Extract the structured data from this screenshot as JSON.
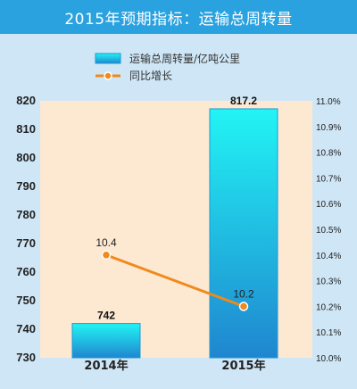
{
  "title": "2015年预期指标：运输总周转量",
  "colors": {
    "title_bg": "#2aa2e0",
    "page_bg": "#cfe6f6",
    "plot_bg": "#fde8d2",
    "bar_top": "#22f4f4",
    "bar_bottom": "#1f86cf",
    "line": "#f08a1c"
  },
  "chart_data": {
    "type": "bar",
    "categories": [
      "2014年",
      "2015年"
    ],
    "series": [
      {
        "name": "运输总周转量/亿吨公里",
        "type": "bar",
        "axis": "left",
        "values": [
          742,
          817.2
        ],
        "labels": [
          "742",
          "817.2"
        ]
      },
      {
        "name": "同比增长",
        "type": "line",
        "axis": "right",
        "values": [
          10.4,
          10.2
        ],
        "labels": [
          "10.4",
          "10.2"
        ]
      }
    ],
    "y_left": {
      "min": 730,
      "max": 820,
      "ticks": [
        "730",
        "740",
        "750",
        "760",
        "770",
        "780",
        "790",
        "800",
        "810",
        "820"
      ]
    },
    "y_right": {
      "min": 10.0,
      "max": 11.0,
      "ticks": [
        "10.0%",
        "10.1%",
        "10.2%",
        "10.3%",
        "10.4%",
        "10.5%",
        "10.6%",
        "10.7%",
        "10.8%",
        "10.9%",
        "11.0%"
      ]
    },
    "legend_position": "top-center",
    "grid": false
  }
}
